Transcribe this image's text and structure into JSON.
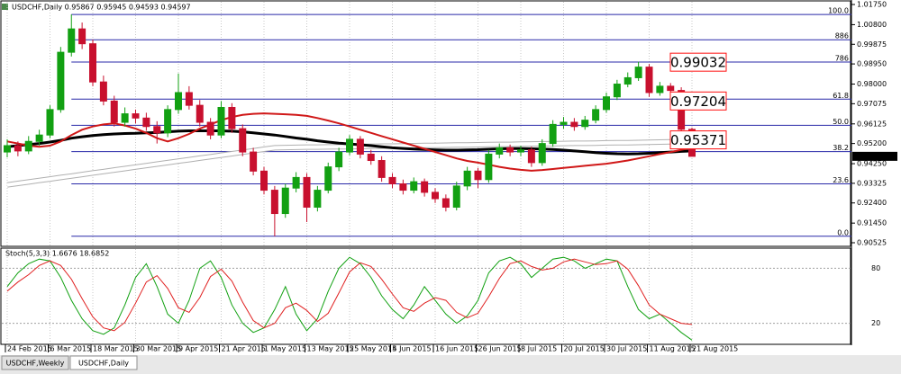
{
  "chart_data": {
    "type": "candlestick",
    "title": "USDCHF,Daily 0.95867 0.95945 0.94593 0.94597",
    "categories": [
      "24 Feb 2015",
      null,
      null,
      null,
      "6 Mar 2015",
      null,
      null,
      null,
      "18 Mar 2015",
      null,
      null,
      null,
      "30 Mar 2015",
      null,
      null,
      null,
      "9 Apr 2015",
      null,
      null,
      null,
      "21 Apr 2015",
      null,
      null,
      null,
      "1 May 2015",
      null,
      null,
      null,
      "13 May 2015",
      null,
      null,
      null,
      "25 May 2015",
      null,
      null,
      null,
      "4 Jun 2015",
      null,
      null,
      null,
      "16 Jun 2015",
      null,
      null,
      null,
      "26 Jun 2015",
      null,
      null,
      null,
      "8 Jul 2015",
      null,
      null,
      null,
      "20 Jul 2015",
      null,
      null,
      null,
      "30 Jul 2015",
      null,
      null,
      null,
      "11 Aug 2015",
      null,
      null,
      null,
      "21 Aug 2015"
    ],
    "open": [
      0.948,
      0.951,
      0.9485,
      0.953,
      0.956,
      0.968,
      0.995,
      1.006,
      0.999,
      0.981,
      0.972,
      0.962,
      0.966,
      0.964,
      0.96,
      0.957,
      0.968,
      0.976,
      0.97,
      0.962,
      0.956,
      0.969,
      0.959,
      0.948,
      0.939,
      0.93,
      0.919,
      0.931,
      0.936,
      0.922,
      0.93,
      0.941,
      0.948,
      0.954,
      0.947,
      0.944,
      0.936,
      0.933,
      0.93,
      0.934,
      0.929,
      0.926,
      0.922,
      0.932,
      0.939,
      0.935,
      0.947,
      0.95,
      0.948,
      0.949,
      0.943,
      0.952,
      0.961,
      0.962,
      0.96,
      0.963,
      0.968,
      0.974,
      0.98,
      0.983,
      0.988,
      0.976,
      0.979,
      0.977,
      0.95867
    ],
    "high": [
      0.954,
      0.953,
      0.9555,
      0.9585,
      0.97,
      0.9975,
      1.0128,
      1.009,
      1.001,
      0.984,
      0.9745,
      0.969,
      0.968,
      0.9665,
      0.9625,
      0.97,
      0.985,
      0.979,
      0.9725,
      0.964,
      0.972,
      0.971,
      0.961,
      0.95,
      0.941,
      0.932,
      0.933,
      0.9385,
      0.938,
      0.932,
      0.943,
      0.95,
      0.956,
      0.9555,
      0.949,
      0.946,
      0.938,
      0.935,
      0.936,
      0.9355,
      0.931,
      0.928,
      0.934,
      0.941,
      0.9405,
      0.949,
      0.952,
      0.9515,
      0.951,
      0.9505,
      0.954,
      0.963,
      0.9645,
      0.964,
      0.965,
      0.97,
      0.976,
      0.982,
      0.9855,
      0.9905,
      0.9895,
      0.981,
      0.9805,
      0.9785,
      0.95945
    ],
    "low": [
      0.9455,
      0.946,
      0.947,
      0.951,
      0.9545,
      0.9665,
      0.993,
      0.9965,
      0.979,
      0.97,
      0.96,
      0.96,
      0.9615,
      0.958,
      0.952,
      0.955,
      0.966,
      0.968,
      0.96,
      0.954,
      0.9545,
      0.957,
      0.946,
      0.937,
      0.928,
      0.9083,
      0.917,
      0.929,
      0.915,
      0.92,
      0.9285,
      0.939,
      0.9465,
      0.945,
      0.942,
      0.934,
      0.931,
      0.928,
      0.9285,
      0.927,
      0.924,
      0.92,
      0.9205,
      0.93,
      0.931,
      0.9335,
      0.945,
      0.946,
      0.946,
      0.941,
      0.9415,
      0.9505,
      0.959,
      0.958,
      0.9585,
      0.9615,
      0.9665,
      0.9725,
      0.9785,
      0.9815,
      0.974,
      0.9745,
      0.975,
      0.957,
      0.94593
    ],
    "close": [
      0.951,
      0.9485,
      0.953,
      0.956,
      0.968,
      0.995,
      1.006,
      0.999,
      0.981,
      0.972,
      0.962,
      0.966,
      0.964,
      0.96,
      0.957,
      0.968,
      0.976,
      0.97,
      0.962,
      0.956,
      0.969,
      0.959,
      0.948,
      0.939,
      0.93,
      0.919,
      0.931,
      0.936,
      0.922,
      0.93,
      0.941,
      0.948,
      0.954,
      0.947,
      0.944,
      0.936,
      0.933,
      0.93,
      0.934,
      0.929,
      0.926,
      0.922,
      0.932,
      0.939,
      0.935,
      0.947,
      0.95,
      0.948,
      0.949,
      0.943,
      0.952,
      0.961,
      0.962,
      0.96,
      0.963,
      0.968,
      0.974,
      0.98,
      0.983,
      0.988,
      0.976,
      0.979,
      0.977,
      0.9587,
      0.94597
    ],
    "up_color": "#12a012",
    "down_color": "#c8102e",
    "moving_averages": [
      {
        "color": "#ffffff",
        "values": [
          0.9325,
          0.9332,
          0.9339,
          0.9346,
          0.9353,
          0.936,
          0.9367,
          0.9374,
          0.9381,
          0.9388,
          0.9395,
          0.9402,
          0.9409,
          0.9416,
          0.9423,
          0.943,
          0.9437,
          0.9444,
          0.9451,
          0.9458,
          0.9465,
          0.9472,
          0.9479,
          0.9486,
          0.9493,
          0.95,
          0.9501,
          0.9502,
          0.9503,
          0.9503,
          0.9504,
          0.9505,
          0.9505,
          0.9506,
          0.9507,
          0.9508,
          0.9508,
          0.9509,
          0.951,
          0.9511,
          0.9511,
          0.9512,
          0.9513,
          0.9513,
          0.9514,
          0.9515,
          0.9516,
          0.9516,
          0.9517,
          0.9518,
          0.9519,
          0.9519,
          0.952,
          0.9521,
          0.9521,
          0.9522,
          0.9523,
          0.9524,
          0.9524,
          0.9525,
          0.9526,
          0.9527,
          0.9528,
          0.9529,
          0.953
        ]
      },
      {
        "color": "#000000",
        "values": [
          0.9505,
          0.951,
          0.9515,
          0.952,
          0.9527,
          0.9535,
          0.9545,
          0.9552,
          0.9558,
          0.9562,
          0.9565,
          0.9567,
          0.9568,
          0.957,
          0.9572,
          0.9575,
          0.9578,
          0.958,
          0.958,
          0.958,
          0.958,
          0.9578,
          0.9575,
          0.957,
          0.9565,
          0.956,
          0.9553,
          0.9546,
          0.954,
          0.9533,
          0.9527,
          0.9522,
          0.9518,
          0.9514,
          0.951,
          0.9505,
          0.95,
          0.9497,
          0.9494,
          0.9492,
          0.949,
          0.9489,
          0.9489,
          0.949,
          0.9491,
          0.9493,
          0.9495,
          0.9496,
          0.9496,
          0.9495,
          0.9494,
          0.9492,
          0.9489,
          0.9485,
          0.9481,
          0.9477,
          0.9474,
          0.9472,
          0.9471,
          0.9472,
          0.9474,
          0.9477,
          0.948,
          0.9483,
          0.9485
        ]
      },
      {
        "color": "#d01818",
        "values": [
          0.953,
          0.952,
          0.951,
          0.9505,
          0.951,
          0.953,
          0.956,
          0.9585,
          0.96,
          0.961,
          0.9615,
          0.9605,
          0.959,
          0.957,
          0.9545,
          0.953,
          0.9545,
          0.9565,
          0.959,
          0.961,
          0.963,
          0.9645,
          0.9655,
          0.966,
          0.9662,
          0.966,
          0.9658,
          0.9655,
          0.965,
          0.964,
          0.9628,
          0.9615,
          0.96,
          0.9585,
          0.957,
          0.9555,
          0.954,
          0.9525,
          0.951,
          0.9495,
          0.948,
          0.9465,
          0.945,
          0.9438,
          0.943,
          0.942,
          0.941,
          0.9402,
          0.9396,
          0.9392,
          0.9395,
          0.94,
          0.9405,
          0.941,
          0.9415,
          0.942,
          0.9425,
          0.9432,
          0.944,
          0.945,
          0.946,
          0.947,
          0.948,
          0.949,
          0.95
        ]
      }
    ],
    "ylim": [
      0.90525,
      1.0175
    ],
    "yticks": [
      {
        "value": 1.0175,
        "label": "1.01750"
      },
      {
        "value": 1.008,
        "label": "1.00800"
      },
      0.99875,
      {
        "value": 0.9895,
        "label": "0.98950"
      },
      {
        "value": 0.98,
        "label": "0.98000"
      },
      0.97075,
      0.96125,
      {
        "value": 0.952,
        "label": "0.95200"
      },
      {
        "value": 0.9425,
        "label": "0.94250"
      },
      0.93325,
      {
        "value": 0.924,
        "label": "0.92400"
      },
      {
        "value": 0.9145,
        "label": "0.91450"
      },
      0.90525
    ],
    "grid": true,
    "fib_levels": [
      {
        "value": 1.0128,
        "label": "100.0"
      },
      {
        "value": 1.0009,
        "label": "886"
      },
      {
        "value": 0.9904,
        "label": "786"
      },
      {
        "value": 0.9729,
        "label": "61.8"
      },
      {
        "value": 0.9606,
        "label": "50.0"
      },
      {
        "value": 0.9482,
        "label": "38.2"
      },
      {
        "value": 0.933,
        "label": "23.6"
      },
      {
        "value": 0.9083,
        "label": "0.0"
      }
    ],
    "fib_color": "#2828a8",
    "price_labels": [
      0.99032,
      0.97204,
      0.95371
    ],
    "price_label_color": "#ff1010",
    "indicator": {
      "title": "Stoch(5,3,3) 1.6676 18.6852",
      "ylim": [
        0,
        100
      ],
      "yticks": [
        20,
        80
      ],
      "main": {
        "color": "#10a010",
        "values": [
          60,
          75,
          85,
          90,
          88,
          70,
          45,
          25,
          12,
          8,
          15,
          40,
          70,
          85,
          60,
          30,
          20,
          45,
          80,
          88,
          70,
          40,
          20,
          10,
          15,
          35,
          60,
          30,
          12,
          25,
          55,
          80,
          92,
          85,
          70,
          50,
          35,
          25,
          40,
          60,
          45,
          30,
          20,
          28,
          45,
          75,
          88,
          92,
          85,
          70,
          80,
          90,
          92,
          88,
          80,
          85,
          90,
          88,
          60,
          35,
          25,
          30,
          20,
          10,
          1.6676
        ]
      },
      "signal": {
        "color": "#e02020",
        "values": [
          55,
          65,
          73,
          83,
          88,
          83,
          68,
          47,
          27,
          15,
          12,
          21,
          42,
          65,
          72,
          58,
          37,
          32,
          48,
          71,
          79,
          66,
          43,
          23,
          15,
          20,
          37,
          42,
          34,
          22,
          31,
          53,
          76,
          86,
          82,
          68,
          52,
          37,
          33,
          42,
          48,
          45,
          32,
          26,
          31,
          49,
          69,
          85,
          88,
          82,
          78,
          80,
          87,
          90,
          87,
          84,
          85,
          88,
          79,
          61,
          40,
          30,
          25,
          20,
          18.6852
        ]
      }
    },
    "tabs": [
      "USDCHF,Weekly",
      "USDCHF,Daily"
    ]
  }
}
